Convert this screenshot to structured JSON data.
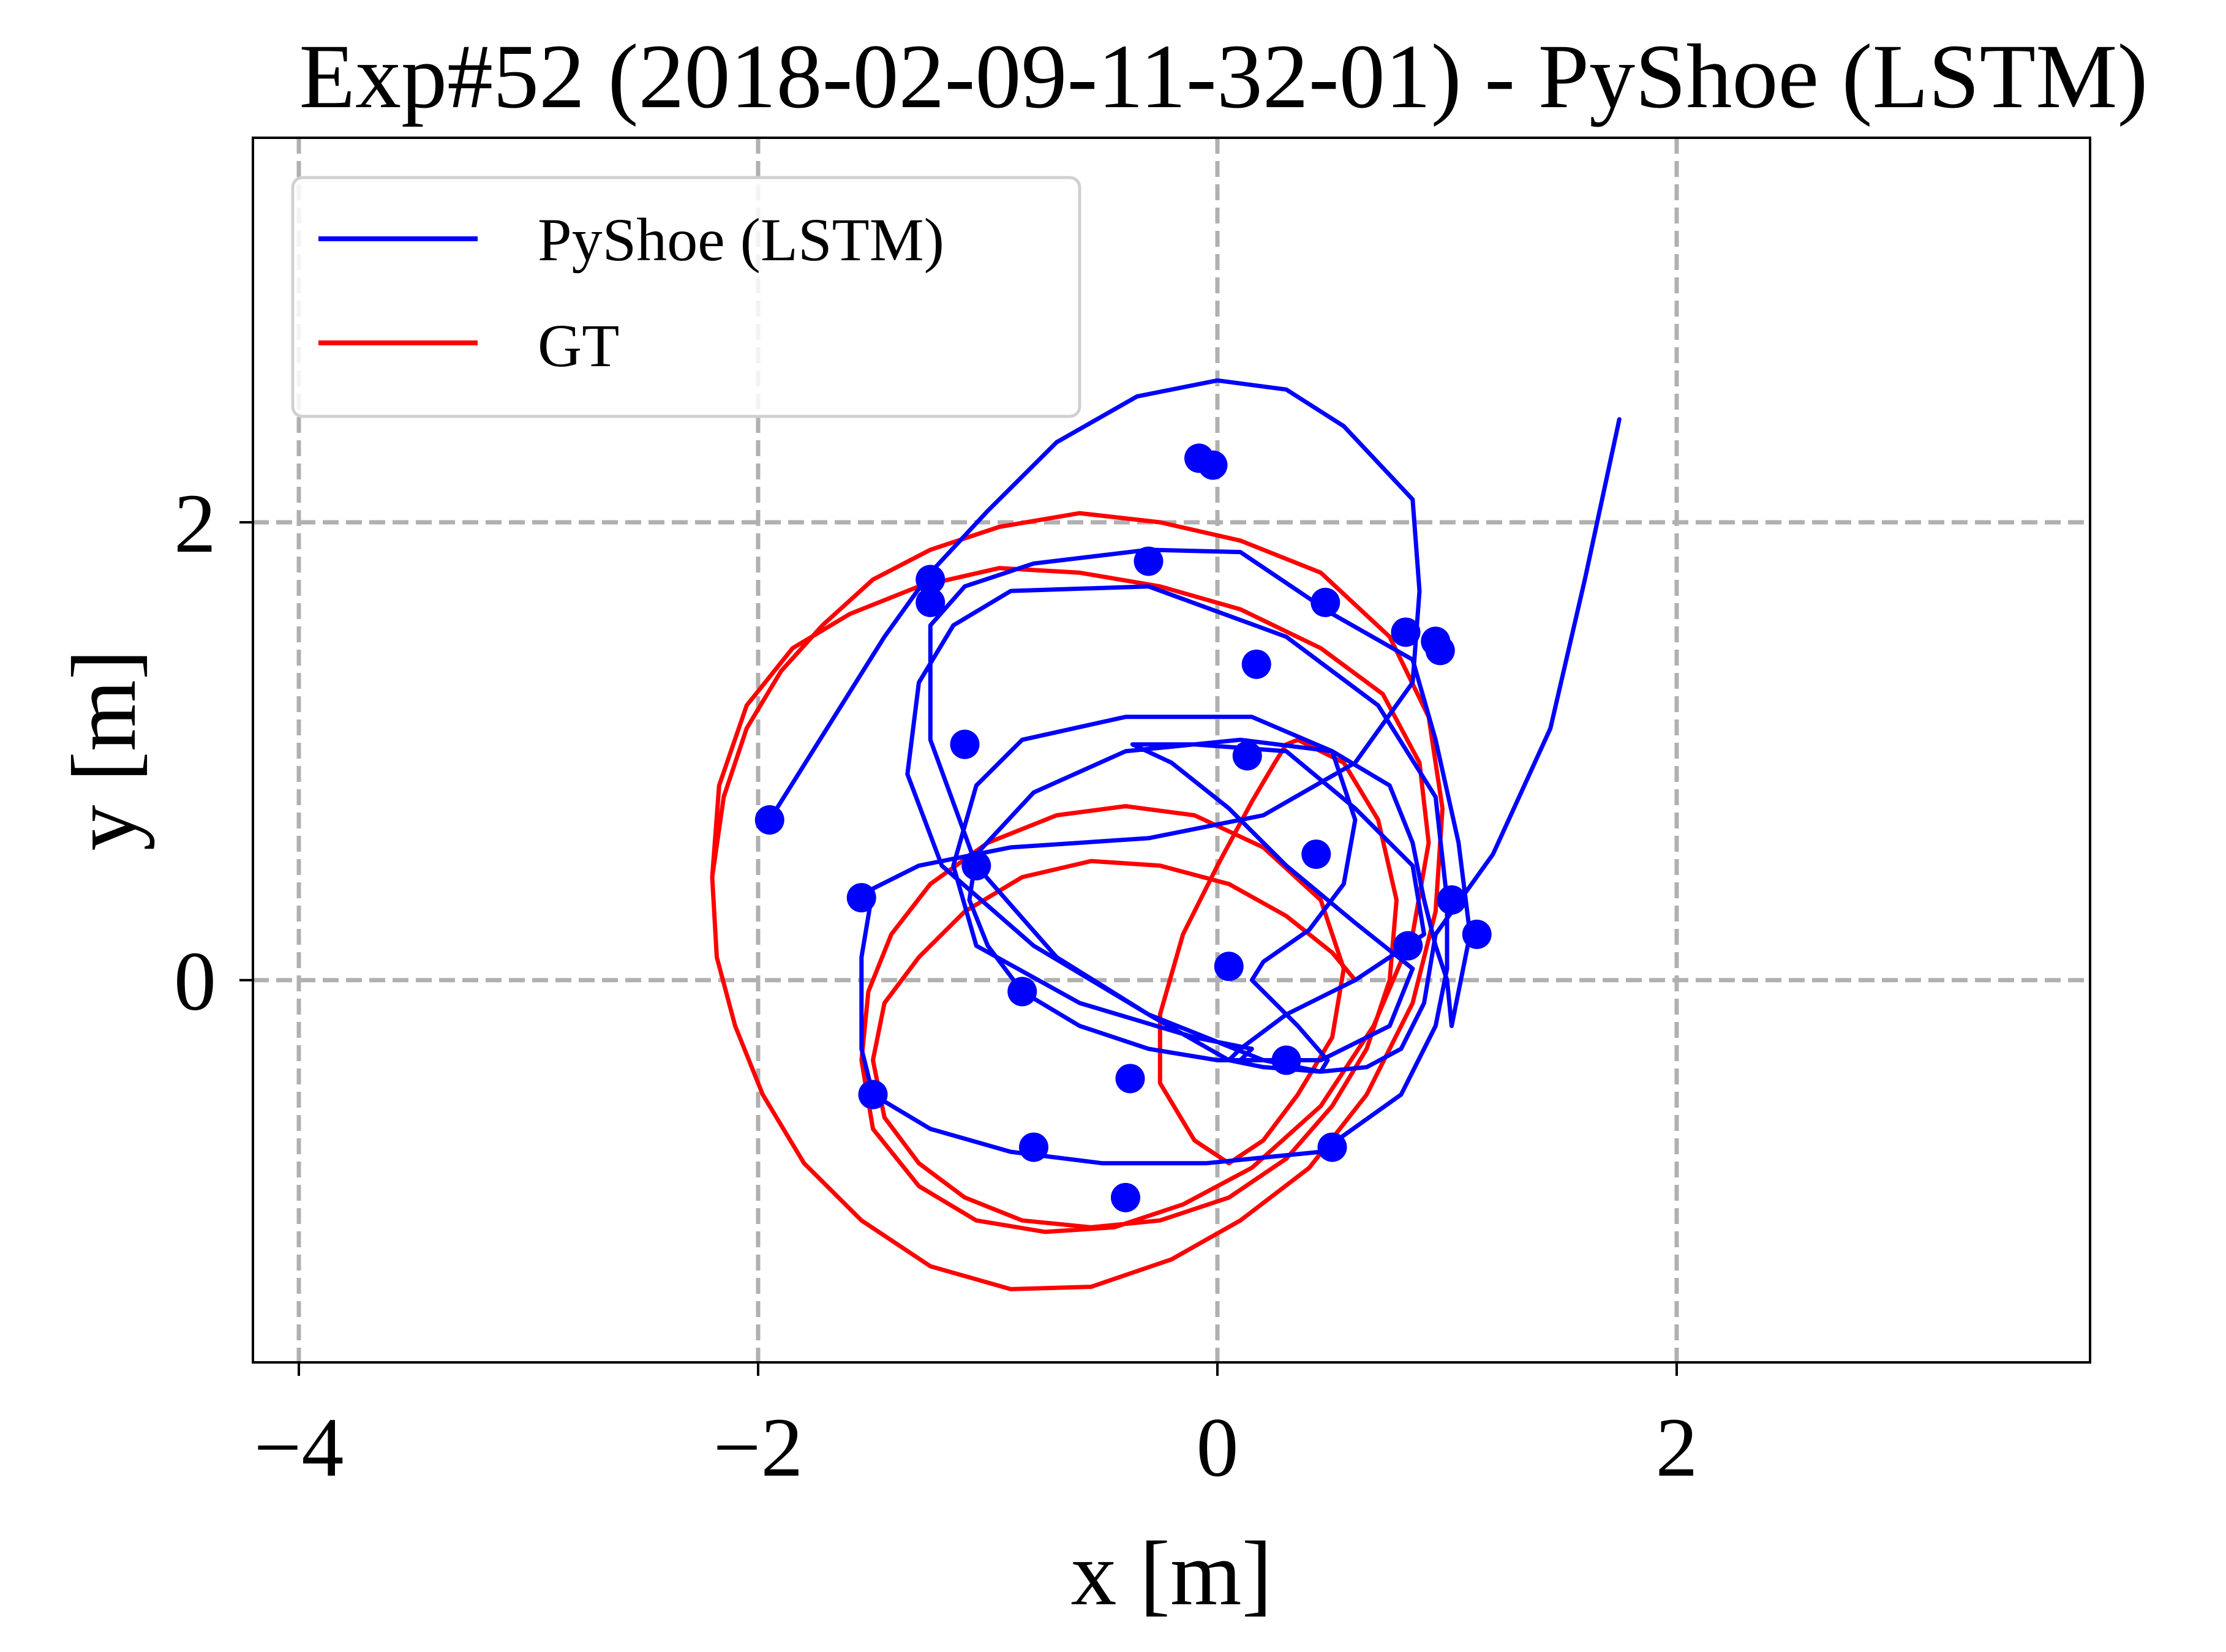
{
  "chart_data": {
    "type": "line",
    "title": "Exp#52 (2018-02-09-11-32-01) - PyShoe (LSTM)",
    "xlabel": "x [m]",
    "ylabel": "y [m]",
    "xlim": [
      -4.2,
      3.8
    ],
    "ylim": [
      -1.67,
      3.68
    ],
    "xticks": [
      -4,
      -2,
      0,
      2
    ],
    "yticks": [
      0,
      2
    ],
    "xtick_labels": [
      "−4",
      "−2",
      "0",
      "2"
    ],
    "ytick_labels": [
      "0",
      "2"
    ],
    "grid": true,
    "legend_position": "top-left",
    "colors": {
      "pyshoe": "#0000ff",
      "gt": "#ff0000",
      "grid": "#b0b0b0"
    },
    "series": [
      {
        "name": "PyShoe (LSTM)",
        "color": "#0000ff",
        "x": [
          -1.95,
          -1.7,
          -1.45,
          -1.25,
          -1.0,
          -0.7,
          -0.35,
          0.0,
          0.3,
          0.55,
          0.85,
          0.88,
          0.85,
          0.6,
          0.2,
          -0.3,
          -0.9,
          -1.3,
          -1.5,
          -1.55,
          -1.55,
          -1.5,
          -1.25,
          -0.9,
          -0.5,
          -0.05,
          0.45,
          0.8,
          0.95,
          1.0,
          1.0,
          0.95,
          0.7,
          0.3,
          -0.3,
          -0.9,
          -1.15,
          -1.3,
          -1.35,
          -1.2,
          -0.8,
          -0.3,
          0.2,
          0.45,
          0.48,
          0.35,
          0.15,
          0.2,
          0.4,
          0.55,
          0.6,
          0.5,
          0.15,
          -0.4,
          -0.85,
          -1.05,
          -1.15,
          -1.05,
          -0.6,
          -0.1,
          0.15,
          0.1,
          0.0,
          -0.3,
          -0.6,
          -0.85,
          -1.0,
          -1.08,
          -1.05,
          -0.8,
          -0.4,
          0.1,
          0.5,
          0.75,
          0.85,
          0.9,
          0.95,
          1.0,
          1.02,
          1.1,
          1.05,
          0.95,
          0.85,
          0.5,
          0.1,
          -0.3,
          -0.8,
          -1.1,
          -1.25,
          -1.25,
          -1.05,
          -0.7,
          -0.3,
          0.05,
          0.45,
          0.75,
          0.85,
          0.6,
          0.3,
          0.05,
          -0.2,
          -0.37,
          -0.1,
          0.3,
          0.6,
          0.85,
          0.9,
          0.6,
          0.3,
          0.1,
          0.05,
          0.2,
          0.45,
          0.65,
          0.8,
          0.9,
          0.95,
          1.2,
          1.45,
          1.6,
          1.75
        ],
        "y": [
          0.7,
          1.1,
          1.5,
          1.78,
          2.05,
          2.35,
          2.55,
          2.62,
          2.58,
          2.42,
          2.1,
          1.7,
          1.3,
          0.95,
          0.72,
          0.62,
          0.58,
          0.5,
          0.4,
          0.1,
          -0.3,
          -0.5,
          -0.65,
          -0.75,
          -0.8,
          -0.8,
          -0.75,
          -0.5,
          -0.2,
          0.05,
          0.35,
          0.8,
          1.2,
          1.5,
          1.72,
          1.7,
          1.55,
          1.3,
          0.9,
          0.5,
          0.15,
          -0.15,
          -0.35,
          -0.4,
          -0.35,
          -0.2,
          0.0,
          0.08,
          0.22,
          0.42,
          0.7,
          1.0,
          1.15,
          1.15,
          1.05,
          0.85,
          0.5,
          0.15,
          -0.1,
          -0.25,
          -0.3,
          -0.35,
          -0.35,
          -0.3,
          -0.2,
          -0.05,
          0.15,
          0.35,
          0.55,
          0.82,
          1.0,
          1.05,
          1.0,
          0.85,
          0.6,
          0.35,
          0.15,
          0.0,
          -0.2,
          0.2,
          0.6,
          1.05,
          1.4,
          1.6,
          1.87,
          1.88,
          1.82,
          1.72,
          1.55,
          1.05,
          0.5,
          0.1,
          -0.15,
          -0.35,
          -0.35,
          -0.2,
          0.05,
          0.25,
          0.5,
          0.75,
          0.95,
          1.03,
          1.03,
          1.0,
          0.75,
          0.5,
          0.2,
          0.0,
          -0.15,
          -0.3,
          -0.35,
          -0.38,
          -0.4,
          -0.38,
          -0.3,
          -0.1,
          0.2,
          0.55,
          1.1,
          1.75,
          2.45
        ]
      },
      {
        "name": "GT",
        "color": "#ff0000",
        "x": [
          -2.2,
          -2.15,
          -2.05,
          -1.9,
          -1.72,
          -1.5,
          -1.25,
          -0.95,
          -0.6,
          -0.25,
          0.1,
          0.45,
          0.75,
          0.92,
          0.98,
          0.95,
          0.85,
          0.65,
          0.4,
          0.1,
          -0.2,
          -0.55,
          -0.9,
          -1.25,
          -1.55,
          -1.8,
          -1.98,
          -2.1,
          -2.18,
          -2.2,
          -2.17,
          -2.05,
          -1.85,
          -1.6,
          -1.3,
          -0.95,
          -0.6,
          -0.25,
          0.1,
          0.45,
          0.72,
          0.88,
          0.92,
          0.85,
          0.68,
          0.45,
          0.15,
          -0.15,
          -0.45,
          -0.75,
          -1.05,
          -1.3,
          -1.5,
          -1.55,
          -1.52,
          -1.42,
          -1.25,
          -1.0,
          -0.7,
          -0.4,
          -0.1,
          0.2,
          0.45,
          0.55,
          0.5,
          0.35,
          0.2,
          0.05,
          -0.1,
          -0.25,
          -0.25,
          -0.15,
          0.0,
          0.15,
          0.25,
          0.3,
          0.35,
          0.55,
          0.7,
          0.78,
          0.75,
          0.65,
          0.5,
          0.3,
          0.05,
          -0.25,
          -0.55,
          -0.85,
          -1.1,
          -1.3,
          -1.45,
          -1.5,
          -1.45,
          -1.3,
          -1.1,
          -0.85,
          -0.55,
          -0.25,
          0.05,
          0.3,
          0.5,
          0.6
        ],
        "y": [
          0.45,
          0.8,
          1.1,
          1.35,
          1.55,
          1.75,
          1.88,
          1.98,
          2.04,
          2.0,
          1.92,
          1.78,
          1.5,
          1.15,
          0.75,
          0.3,
          -0.1,
          -0.5,
          -0.82,
          -1.05,
          -1.22,
          -1.34,
          -1.35,
          -1.25,
          -1.05,
          -0.8,
          -0.5,
          -0.2,
          0.1,
          0.45,
          0.85,
          1.2,
          1.45,
          1.6,
          1.72,
          1.8,
          1.78,
          1.72,
          1.62,
          1.45,
          1.25,
          0.95,
          0.6,
          0.2,
          -0.2,
          -0.55,
          -0.82,
          -0.98,
          -1.08,
          -1.1,
          -1.05,
          -0.9,
          -0.65,
          -0.35,
          -0.05,
          0.2,
          0.42,
          0.6,
          0.72,
          0.76,
          0.72,
          0.58,
          0.35,
          0.05,
          -0.25,
          -0.5,
          -0.7,
          -0.8,
          -0.7,
          -0.45,
          -0.15,
          0.2,
          0.5,
          0.78,
          0.95,
          1.03,
          1.05,
          0.95,
          0.7,
          0.35,
          0.0,
          -0.3,
          -0.55,
          -0.78,
          -0.95,
          -1.05,
          -1.08,
          -1.05,
          -0.95,
          -0.8,
          -0.6,
          -0.35,
          -0.1,
          0.1,
          0.3,
          0.45,
          0.52,
          0.5,
          0.42,
          0.28,
          0.12,
          0.0
        ]
      }
    ],
    "markers": {
      "series": "PyShoe (LSTM)",
      "points": [
        [
          -1.95,
          0.7
        ],
        [
          -1.55,
          0.36
        ],
        [
          -1.5,
          -0.5
        ],
        [
          -1.25,
          1.65
        ],
        [
          -1.25,
          1.75
        ],
        [
          -1.1,
          1.03
        ],
        [
          -1.05,
          0.5
        ],
        [
          -0.85,
          -0.05
        ],
        [
          -0.8,
          -0.73
        ],
        [
          -0.38,
          -0.43
        ],
        [
          -0.4,
          -0.95
        ],
        [
          -0.3,
          1.83
        ],
        [
          -0.08,
          2.28
        ],
        [
          -0.02,
          2.25
        ],
        [
          0.05,
          0.06
        ],
        [
          0.13,
          0.98
        ],
        [
          0.17,
          1.38
        ],
        [
          0.3,
          -0.35
        ],
        [
          0.43,
          0.55
        ],
        [
          0.47,
          1.65
        ],
        [
          0.5,
          -0.73
        ],
        [
          0.82,
          1.52
        ],
        [
          0.83,
          0.15
        ],
        [
          0.95,
          1.48
        ],
        [
          0.97,
          1.44
        ],
        [
          1.02,
          0.35
        ],
        [
          1.13,
          0.2
        ]
      ]
    }
  }
}
